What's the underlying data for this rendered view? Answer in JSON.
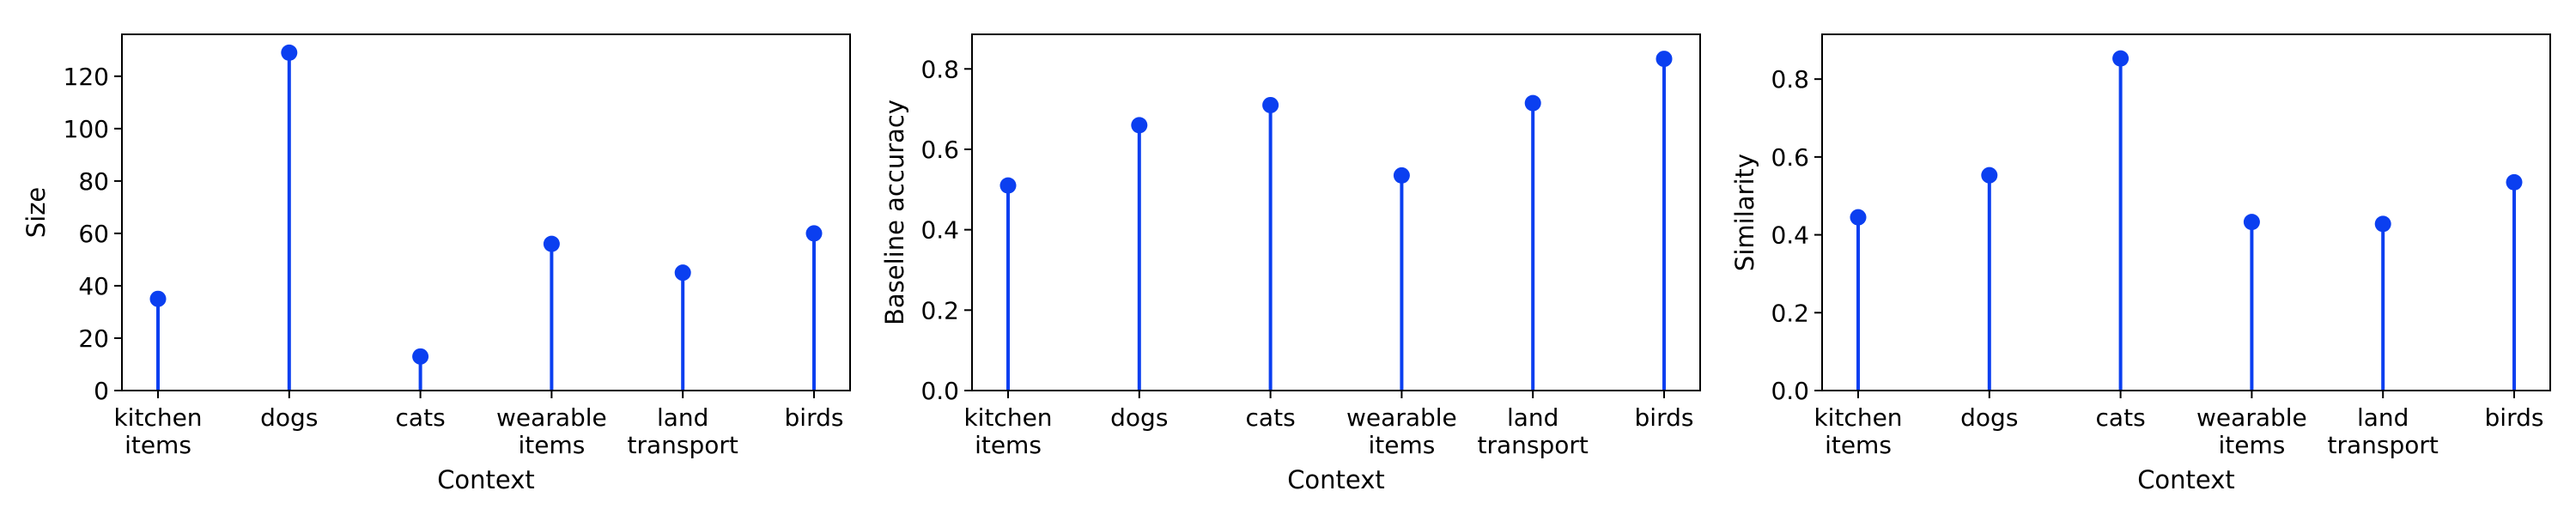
{
  "figure": {
    "marker_color": "#0b3ff0"
  },
  "chart_data": [
    {
      "type": "stem",
      "categories": [
        [
          "kitchen",
          "items"
        ],
        [
          "dogs"
        ],
        [
          "cats"
        ],
        [
          "wearable",
          "items"
        ],
        [
          "land",
          "transport"
        ],
        [
          "birds"
        ]
      ],
      "values": [
        35,
        129,
        13,
        56,
        45,
        60
      ],
      "xlabel": "Context",
      "ylabel": "Size",
      "ylim": [
        0,
        136
      ],
      "yticks": [
        0,
        20,
        40,
        60,
        80,
        100,
        120
      ],
      "ytick_labels": [
        "0",
        "20",
        "40",
        "60",
        "80",
        "100",
        "120"
      ],
      "grid": false
    },
    {
      "type": "stem",
      "categories": [
        [
          "kitchen",
          "items"
        ],
        [
          "dogs"
        ],
        [
          "cats"
        ],
        [
          "wearable",
          "items"
        ],
        [
          "land",
          "transport"
        ],
        [
          "birds"
        ]
      ],
      "values": [
        0.51,
        0.66,
        0.71,
        0.535,
        0.715,
        0.825
      ],
      "xlabel": "Context",
      "ylabel": "Baseline accuracy",
      "ylim": [
        0,
        0.886
      ],
      "yticks": [
        0,
        0.2,
        0.4,
        0.6,
        0.8
      ],
      "ytick_labels": [
        "0.0",
        "0.2",
        "0.4",
        "0.6",
        "0.8"
      ],
      "grid": false
    },
    {
      "type": "stem",
      "categories": [
        [
          "kitchen",
          "items"
        ],
        [
          "dogs"
        ],
        [
          "cats"
        ],
        [
          "wearable",
          "items"
        ],
        [
          "land",
          "transport"
        ],
        [
          "birds"
        ]
      ],
      "values": [
        0.445,
        0.553,
        0.853,
        0.433,
        0.428,
        0.535
      ],
      "xlabel": "Context",
      "ylabel": "Similarity",
      "ylim": [
        0,
        0.915
      ],
      "yticks": [
        0,
        0.2,
        0.4,
        0.6,
        0.8
      ],
      "ytick_labels": [
        "0.0",
        "0.2",
        "0.4",
        "0.6",
        "0.8"
      ],
      "grid": false
    }
  ]
}
